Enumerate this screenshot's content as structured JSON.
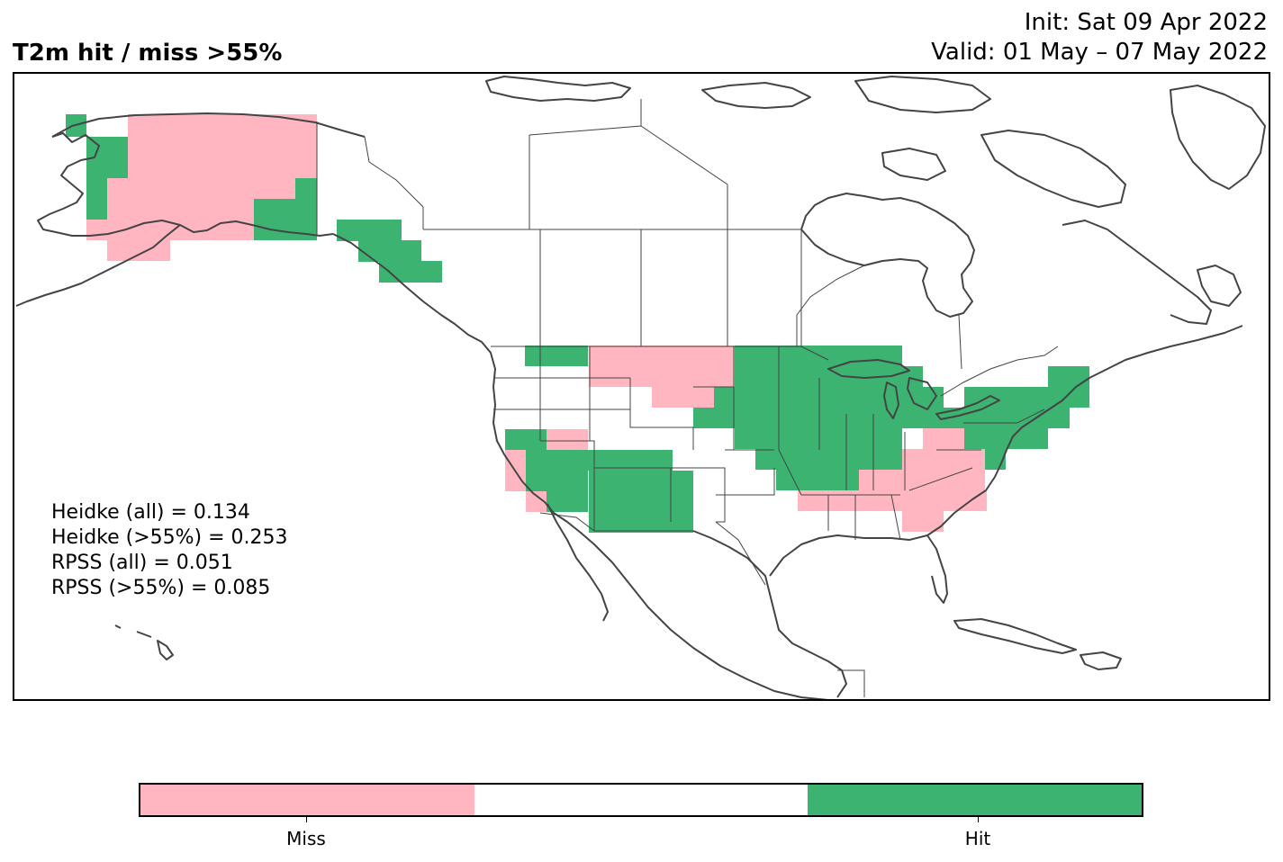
{
  "header": {
    "title": "T2m hit / miss  >55%",
    "init": "Init: Sat 09 Apr 2022",
    "valid": "Valid: 01 May – 07 May 2022"
  },
  "scores": [
    "Heidke (all) = 0.134",
    "Heidke (>55%) = 0.253",
    "RPSS (all) = 0.051",
    "RPSS (>55%) = 0.085"
  ],
  "colorbar": {
    "segments": [
      {
        "name": "miss",
        "color": "#ffb6c1"
      },
      {
        "name": "neutral",
        "color": "#ffffff"
      },
      {
        "name": "hit",
        "color": "#3cb371"
      }
    ],
    "labels": [
      "Miss",
      "Hit"
    ]
  },
  "colors": {
    "miss": "#ffb6c1",
    "hit": "#3cb371",
    "neutral": "#ffffff",
    "coastline": "#444444"
  }
}
